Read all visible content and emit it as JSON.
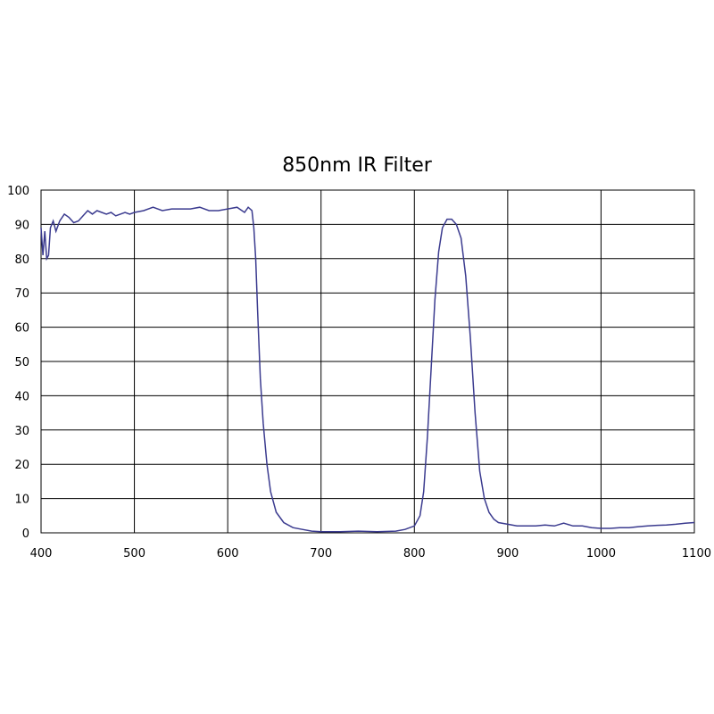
{
  "chart_data": {
    "type": "line",
    "title": "850nm IR Filter",
    "xlabel": "",
    "ylabel": "",
    "xlim": [
      400,
      1100
    ],
    "ylim": [
      0,
      100
    ],
    "x_ticks": [
      400,
      500,
      600,
      700,
      800,
      900,
      1000,
      1100
    ],
    "y_ticks": [
      0,
      10,
      20,
      30,
      40,
      50,
      60,
      70,
      80,
      90,
      100
    ],
    "grid": true,
    "line_color": "#3b3b8f",
    "series": [
      {
        "points": [
          [
            400,
            89
          ],
          [
            402,
            81
          ],
          [
            404,
            88
          ],
          [
            406,
            80
          ],
          [
            408,
            81
          ],
          [
            410,
            89
          ],
          [
            413,
            91
          ],
          [
            416,
            88
          ],
          [
            420,
            91
          ],
          [
            425,
            93
          ],
          [
            430,
            92
          ],
          [
            435,
            90.5
          ],
          [
            440,
            91
          ],
          [
            445,
            92.5
          ],
          [
            450,
            94
          ],
          [
            455,
            93
          ],
          [
            460,
            94
          ],
          [
            465,
            93.5
          ],
          [
            470,
            93
          ],
          [
            475,
            93.5
          ],
          [
            480,
            92.5
          ],
          [
            485,
            93
          ],
          [
            490,
            93.5
          ],
          [
            495,
            93
          ],
          [
            500,
            93.5
          ],
          [
            510,
            94
          ],
          [
            520,
            95
          ],
          [
            530,
            94
          ],
          [
            540,
            94.5
          ],
          [
            550,
            94.5
          ],
          [
            560,
            94.5
          ],
          [
            570,
            95
          ],
          [
            580,
            94
          ],
          [
            590,
            94
          ],
          [
            600,
            94.5
          ],
          [
            610,
            95
          ],
          [
            618,
            93.5
          ],
          [
            622,
            95
          ],
          [
            626,
            94
          ],
          [
            628,
            89
          ],
          [
            630,
            80
          ],
          [
            632,
            65
          ],
          [
            635,
            45
          ],
          [
            638,
            32
          ],
          [
            642,
            20
          ],
          [
            646,
            12
          ],
          [
            652,
            6
          ],
          [
            660,
            3
          ],
          [
            670,
            1.5
          ],
          [
            680,
            1
          ],
          [
            690,
            0.5
          ],
          [
            700,
            0.3
          ],
          [
            720,
            0.3
          ],
          [
            740,
            0.5
          ],
          [
            760,
            0.3
          ],
          [
            780,
            0.5
          ],
          [
            790,
            1
          ],
          [
            800,
            2
          ],
          [
            806,
            5
          ],
          [
            810,
            12
          ],
          [
            814,
            28
          ],
          [
            818,
            48
          ],
          [
            822,
            68
          ],
          [
            826,
            82
          ],
          [
            830,
            89
          ],
          [
            835,
            91.5
          ],
          [
            840,
            91.5
          ],
          [
            845,
            90
          ],
          [
            850,
            86
          ],
          [
            855,
            75
          ],
          [
            860,
            57
          ],
          [
            865,
            35
          ],
          [
            870,
            18
          ],
          [
            875,
            10
          ],
          [
            880,
            6
          ],
          [
            885,
            4
          ],
          [
            890,
            3
          ],
          [
            900,
            2.5
          ],
          [
            910,
            2
          ],
          [
            920,
            2
          ],
          [
            930,
            2
          ],
          [
            940,
            2.3
          ],
          [
            950,
            2
          ],
          [
            960,
            2.8
          ],
          [
            970,
            2
          ],
          [
            980,
            2
          ],
          [
            990,
            1.5
          ],
          [
            1000,
            1.3
          ],
          [
            1010,
            1.3
          ],
          [
            1020,
            1.5
          ],
          [
            1030,
            1.5
          ],
          [
            1040,
            1.8
          ],
          [
            1050,
            2
          ],
          [
            1060,
            2.2
          ],
          [
            1070,
            2.3
          ],
          [
            1080,
            2.5
          ],
          [
            1090,
            2.8
          ],
          [
            1100,
            3
          ]
        ]
      }
    ]
  }
}
